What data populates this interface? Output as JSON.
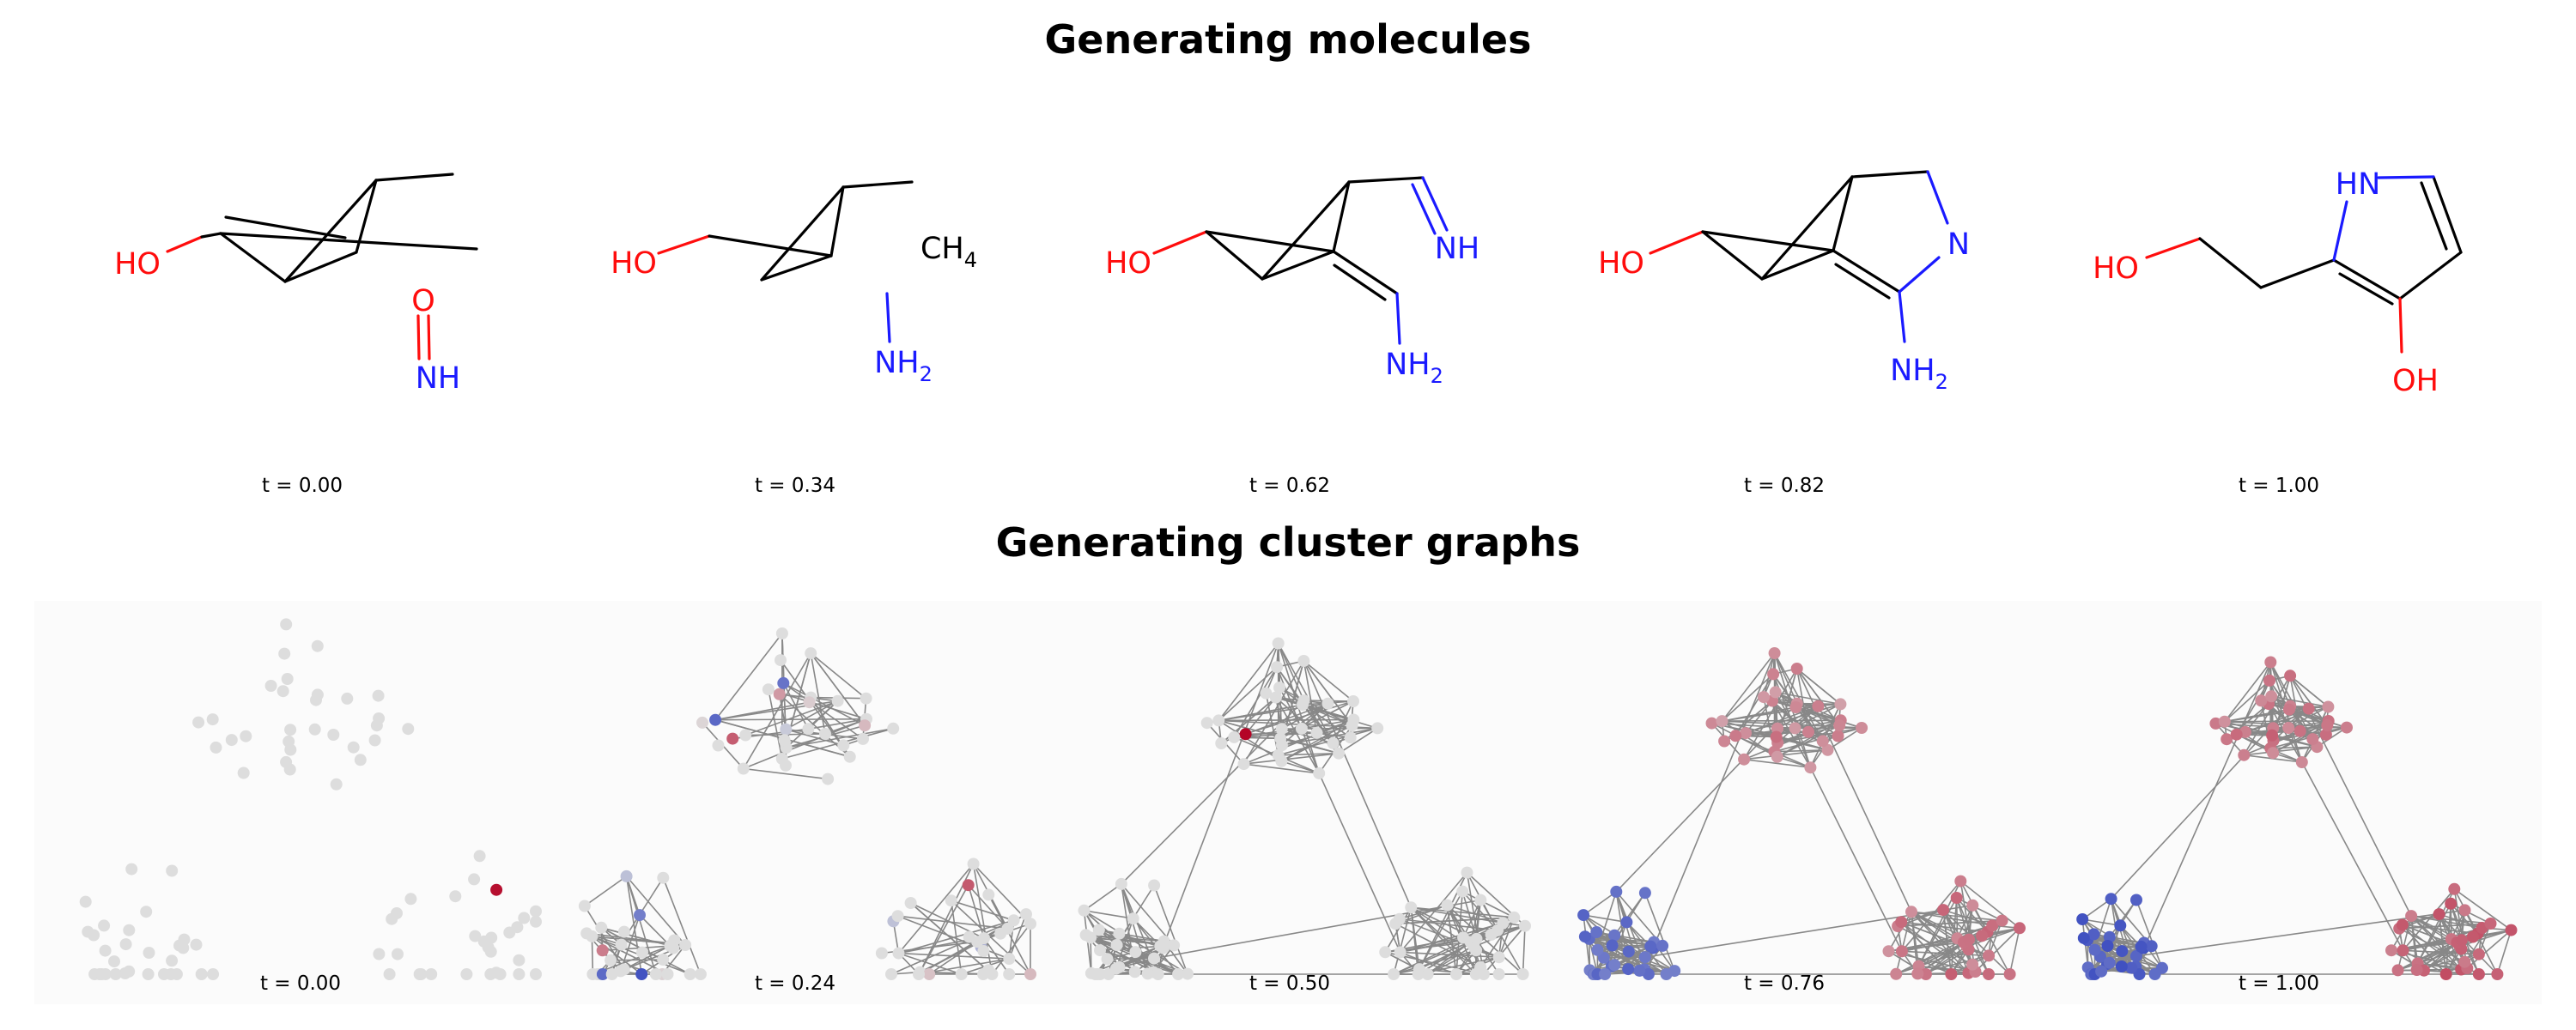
{
  "titles": {
    "molecules": "Generating molecules",
    "graphs": "Generating cluster graphs"
  },
  "colors": {
    "oxygen": "#ff0d0d",
    "nitrogen": "#1a1aff",
    "carbon_bond": "#000000",
    "neutral_node": "#dddddd",
    "edge": "#888888",
    "coolwarm_low": "#3b4cc0",
    "coolwarm_high": "#b40426"
  },
  "molecules": [
    {
      "t_label": "t =  0.00",
      "atoms": [
        "HO",
        "O",
        "NH"
      ]
    },
    {
      "t_label": "t =  0.34",
      "atoms": [
        "HO",
        "CH",
        "4",
        "NH",
        "2"
      ]
    },
    {
      "t_label": "t =  0.62",
      "atoms": [
        "HO",
        "NH",
        "NH",
        "2"
      ]
    },
    {
      "t_label": "t =  0.82",
      "atoms": [
        "HO",
        "N",
        "NH",
        "2"
      ]
    },
    {
      "t_label": "t =  1.00",
      "atoms": [
        "HN",
        "HO",
        "OH"
      ]
    }
  ],
  "graphs": [
    {
      "t_label": "t = 0.00",
      "t": 0.0
    },
    {
      "t_label": "t = 0.24",
      "t": 0.24
    },
    {
      "t_label": "t = 0.50",
      "t": 0.5
    },
    {
      "t_label": "t = 0.76",
      "t": 0.76
    },
    {
      "t_label": "t = 1.00",
      "t": 1.0
    }
  ]
}
